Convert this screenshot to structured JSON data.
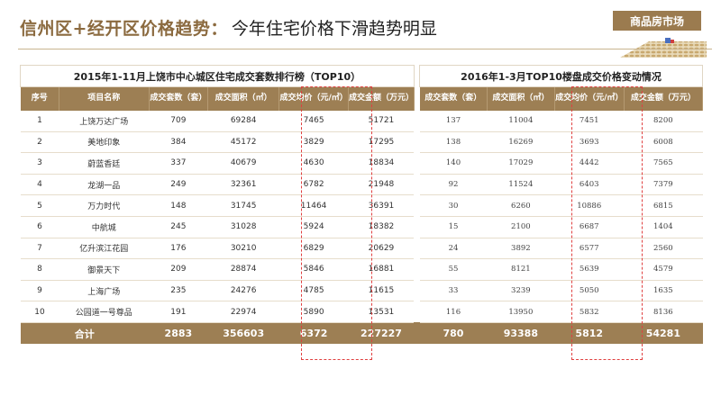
{
  "header": {
    "title_main": "信州区+经开区价格趋势：",
    "title_sub": "今年住宅价格下滑趋势明显",
    "tag": "商品房市场"
  },
  "left_table": {
    "title": "2015年1-11月上饶市中心城区住宅成交套数排行榜（TOP10）",
    "headers": [
      "序号",
      "项目名称",
      "成交套数（套）",
      "成交面积（㎡）",
      "成交均价（元/㎡）",
      "成交金额（万元）"
    ],
    "rows": [
      [
        "1",
        "上饶万达广场",
        "709",
        "69284",
        "7465",
        "51721"
      ],
      [
        "2",
        "美地印象",
        "384",
        "45172",
        "3829",
        "17295"
      ],
      [
        "3",
        "蔚蓝香廷",
        "337",
        "40679",
        "4630",
        "18834"
      ],
      [
        "4",
        "龙湖一品",
        "249",
        "32361",
        "6782",
        "21948"
      ],
      [
        "5",
        "万力时代",
        "148",
        "31745",
        "11464",
        "36391"
      ],
      [
        "6",
        "中航城",
        "245",
        "31028",
        "5924",
        "18382"
      ],
      [
        "7",
        "亿升滨江花园",
        "176",
        "30210",
        "6829",
        "20629"
      ],
      [
        "8",
        "御景天下",
        "209",
        "28874",
        "5846",
        "16881"
      ],
      [
        "9",
        "上海广场",
        "235",
        "24276",
        "4785",
        "11615"
      ],
      [
        "10",
        "公园道一号尊品",
        "191",
        "22974",
        "5890",
        "13531"
      ]
    ],
    "total": [
      "合计",
      "2883",
      "356603",
      "6372",
      "227227"
    ]
  },
  "right_table": {
    "title": "2016年1-3月TOP10楼盘成交价格变动情况",
    "headers": [
      "成交套数（套）",
      "成交面积（㎡）",
      "成交均价（元/㎡）",
      "成交金额（万元）"
    ],
    "rows": [
      [
        "137",
        "11004",
        "7451",
        "8200"
      ],
      [
        "138",
        "16269",
        "3693",
        "6008"
      ],
      [
        "140",
        "17029",
        "4442",
        "7565"
      ],
      [
        "92",
        "11524",
        "6403",
        "7379"
      ],
      [
        "30",
        "6260",
        "10886",
        "6815"
      ],
      [
        "15",
        "2100",
        "6687",
        "1404"
      ],
      [
        "24",
        "3892",
        "6577",
        "2560"
      ],
      [
        "55",
        "8121",
        "5639",
        "4579"
      ],
      [
        "33",
        "3239",
        "5050",
        "1635"
      ],
      [
        "116",
        "13950",
        "5832",
        "8136"
      ]
    ],
    "total": [
      "780",
      "93388",
      "5812",
      "54281"
    ]
  },
  "colors": {
    "accent": "#9d7f54",
    "title_gold": "#8b6a3f",
    "highlight_dash": "#e04040"
  }
}
